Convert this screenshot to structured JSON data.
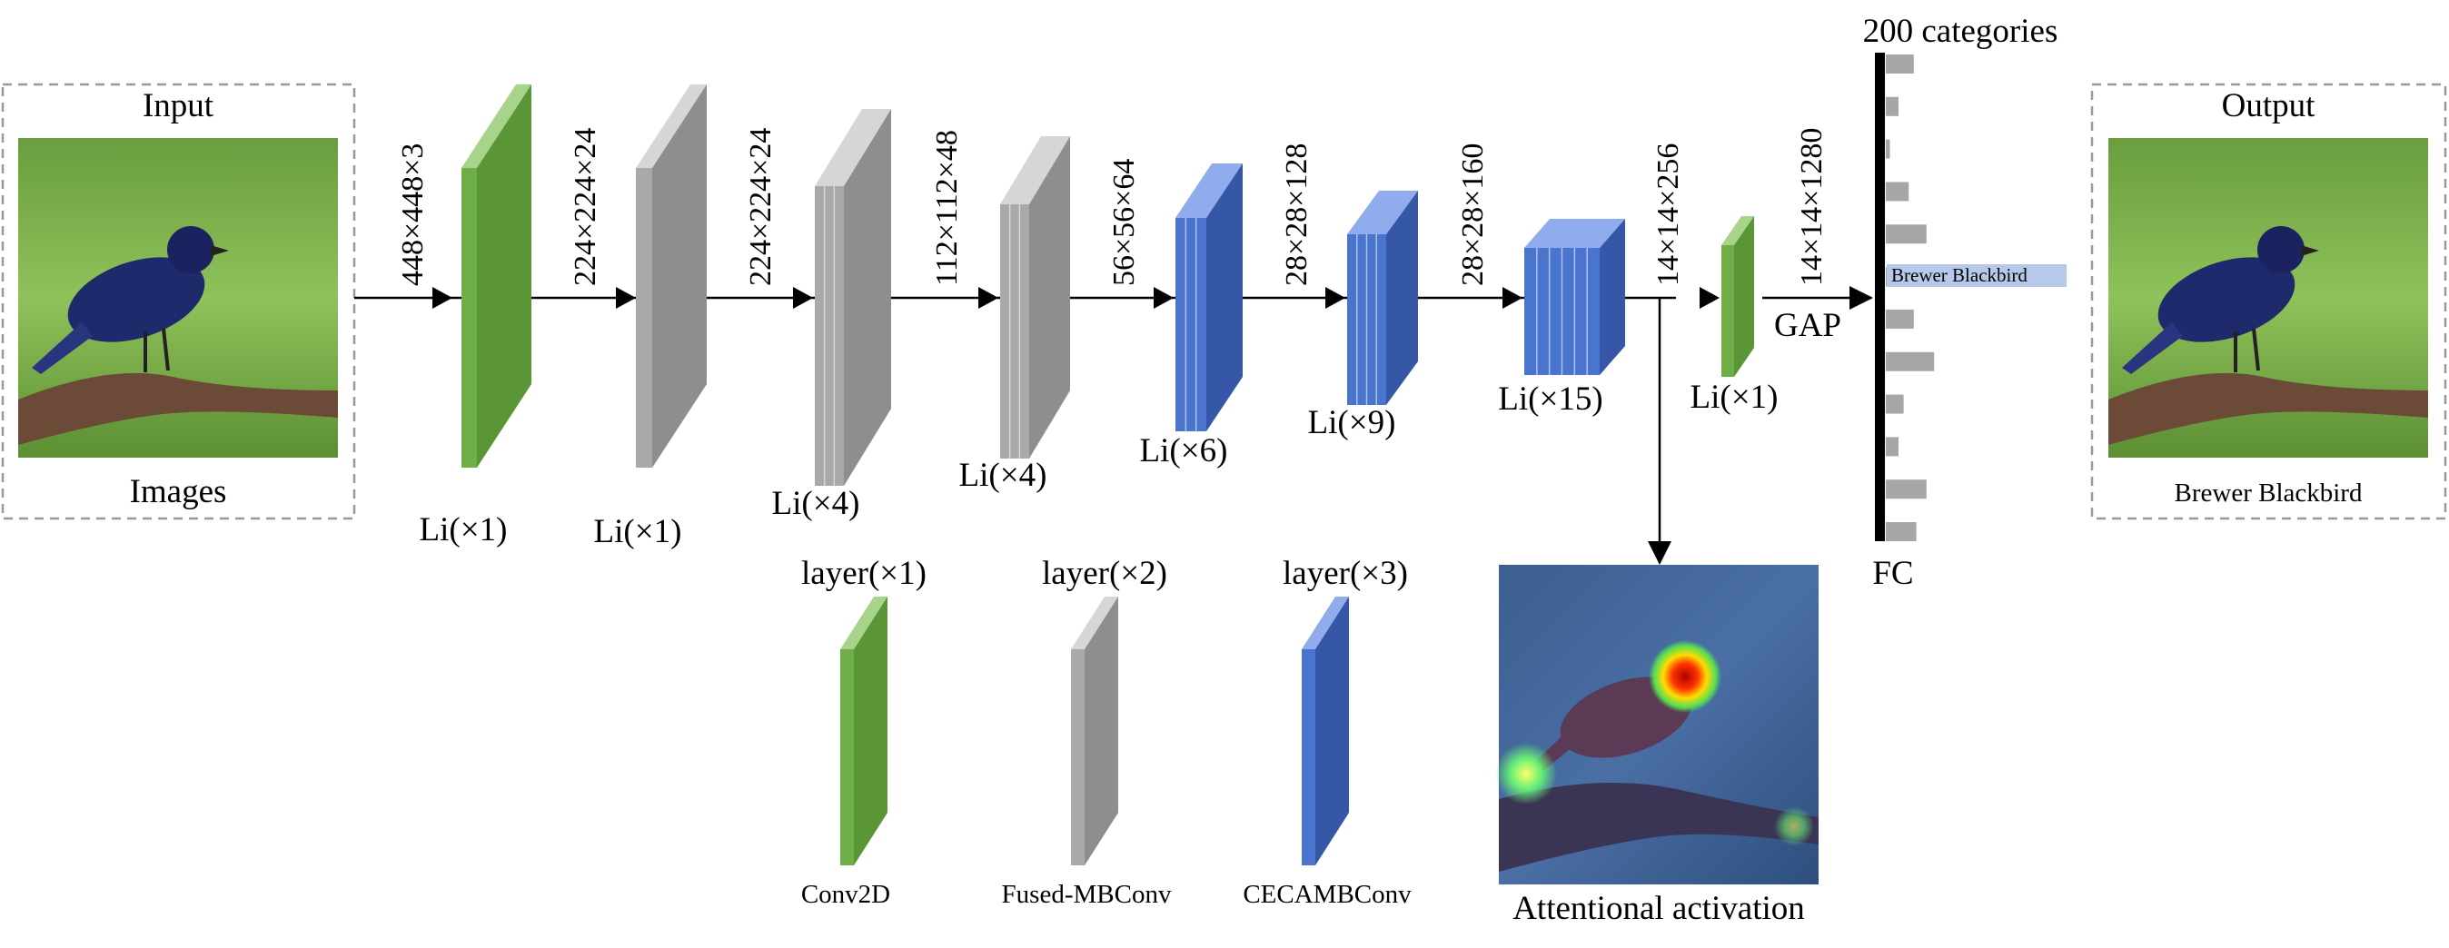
{
  "input": {
    "title": "Input",
    "caption": "Images"
  },
  "output": {
    "title": "Output",
    "caption": "Brewer Blackbird"
  },
  "stages": [
    {
      "dim": "448×448×3",
      "label": "Li(×1)",
      "kind": "conv2d"
    },
    {
      "dim": "224×224×24",
      "label": "Li(×1)",
      "kind": "fused"
    },
    {
      "dim": "224×224×24",
      "label": "Li(×4)",
      "kind": "fused"
    },
    {
      "dim": "112×112×48",
      "label": "Li(×4)",
      "kind": "fused"
    },
    {
      "dim": "56×56×64",
      "label": "Li(×6)",
      "kind": "cecamb"
    },
    {
      "dim": "28×28×128",
      "label": "Li(×9)",
      "kind": "cecamb"
    },
    {
      "dim": "28×28×160",
      "label": "Li(×15)",
      "kind": "cecamb"
    },
    {
      "dim": "14×14×256",
      "label": "Li(×1)",
      "kind": "conv2d"
    },
    {
      "dim": "14×14×1280",
      "label": "",
      "kind": ""
    }
  ],
  "gap_label": "GAP",
  "fc": {
    "title": "200 categories",
    "label": "FC",
    "highlight": "Brewer Blackbird",
    "bar_lengths": [
      0.55,
      0.25,
      0.08,
      0.45,
      0.8,
      0.95,
      0.55,
      0.95,
      0.35,
      0.25,
      0.8,
      0.6
    ]
  },
  "legend": [
    {
      "count": "layer(×1)",
      "name": "Conv2D"
    },
    {
      "count": "layer(×2)",
      "name": "Fused-MBConv"
    },
    {
      "count": "layer(×3)",
      "name": "CECAMBConv"
    }
  ],
  "attention": {
    "caption": "Attentional activation"
  },
  "colors": {
    "conv_front": "#6fae47",
    "conv_side": "#5a9536",
    "conv_top": "#a8d38a",
    "fused_front": "#a9a9a9",
    "fused_side": "#8e8e8e",
    "fused_top": "#d6d6d6",
    "ceca_front": "#4a75cf",
    "ceca_side": "#3656a8",
    "ceca_top": "#90acec",
    "bar": "#a6a6a6",
    "highlight": "#b6c9ea"
  }
}
